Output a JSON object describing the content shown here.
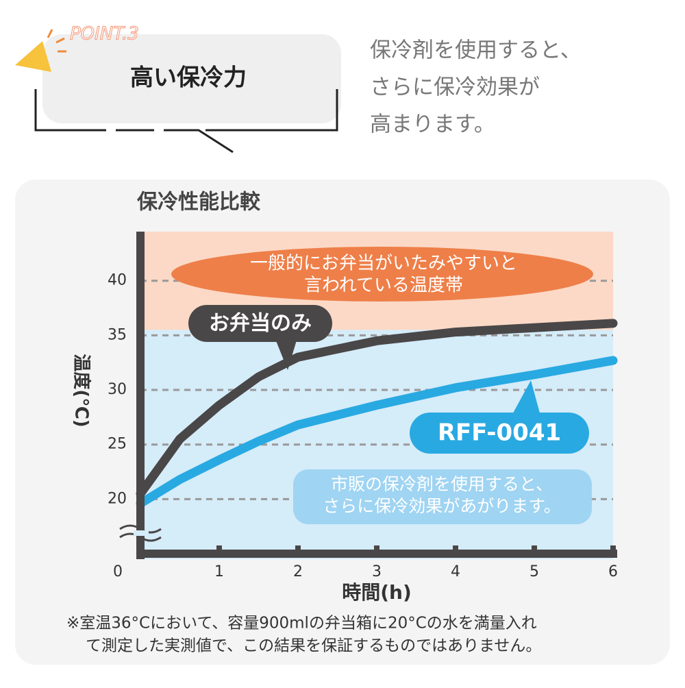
{
  "point_label": "POINT.3",
  "heading": "高い保冷力",
  "description": [
    "保冷剤を使用すると、",
    "さらに保冷効果が",
    "高まります。"
  ],
  "chart_data": {
    "type": "line",
    "title": "保冷性能比較",
    "y_label": "温度(℃)",
    "x_label": "時間(h)",
    "x": [
      0,
      0.5,
      1,
      1.5,
      2,
      3,
      4,
      5,
      6
    ],
    "series": [
      {
        "name": "お弁当のみ",
        "color": "#4a4748",
        "values": [
          20.5,
          25.5,
          28.6,
          31.2,
          33,
          34.5,
          35.3,
          35.7,
          36.1
        ]
      },
      {
        "name": "RFF-0041",
        "color": "#29a9e1",
        "values": [
          19.6,
          21.8,
          23.6,
          25.3,
          26.8,
          28.6,
          30.2,
          31.4,
          32.7
        ]
      }
    ],
    "xlim": [
      0,
      6
    ],
    "xticks": [
      0,
      1,
      2,
      3,
      4,
      5,
      6
    ],
    "ylim": [
      14.5,
      44.5
    ],
    "yticks": [
      20,
      25,
      30,
      35,
      40
    ],
    "grid": true,
    "zone_boundary": 35.5,
    "zone_note": [
      "一般的にお弁当がいたみやすいと",
      "言われている温度帯"
    ],
    "effect_note": [
      "市販の保冷剤を使用すると、",
      "さらに保冷効果があがります。"
    ],
    "footnote": [
      "※室温36°Cにおいて、容量900mlの弁当箱に20°Cの水を満量入れ",
      "て測定した実測値で、この結果を保証するものではありません。"
    ]
  }
}
